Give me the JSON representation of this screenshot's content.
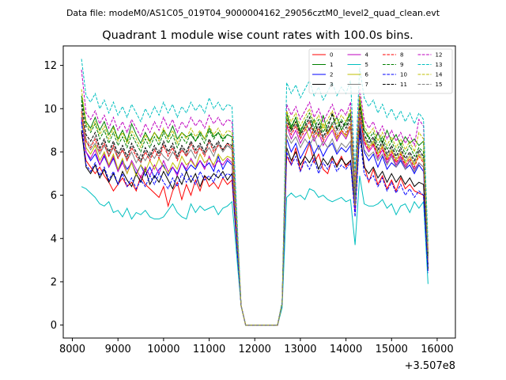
{
  "suptitle": "Data file: modeM0/AS1C05_019T04_9000004162_29056cztM0_level2_quad_clean.evt",
  "chart_data": {
    "type": "line",
    "title": "Quadrant 1 module wise count rates with 100.0s bins.",
    "xlabel": "",
    "ylabel": "",
    "x_offset_label": "+3.507e8",
    "xlim": [
      7800,
      16400
    ],
    "ylim": [
      -0.6,
      12.9
    ],
    "xticks": [
      8000,
      9000,
      10000,
      11000,
      12000,
      13000,
      14000,
      15000,
      16000
    ],
    "xtick_labels": [
      "8000",
      "9000",
      "10000",
      "11000",
      "12000",
      "13000",
      "14000",
      "15000",
      "16000"
    ],
    "yticks": [
      0,
      2,
      4,
      6,
      8,
      10,
      12
    ],
    "ytick_labels": [
      "0",
      "2",
      "4",
      "6",
      "8",
      "10",
      "12"
    ],
    "legend_position": "top-right",
    "x_start": 8200,
    "x_step": 100,
    "gap_start": 11600,
    "gap_end": 12600,
    "series": [
      {
        "name": "0",
        "color": "#ff0000",
        "dash": "solid",
        "pre": [
          8.9,
          7.6,
          7.3,
          7.0,
          7.3,
          6.9,
          6.6,
          6.2,
          6.5,
          6.8,
          6.4,
          6.6,
          6.2,
          6.9,
          6.5,
          6.3,
          6.1,
          5.9,
          6.4,
          5.5,
          6.2,
          6.6,
          5.8,
          6.5,
          6.0,
          6.7,
          6.2,
          6.9,
          6.4,
          6.6,
          6.3,
          6.8,
          6.5,
          6.7
        ],
        "post": [
          1.0,
          7.8,
          7.4,
          8.2,
          7.1,
          7.8,
          8.4,
          7.5,
          7.9,
          7.2,
          7.0,
          7.7,
          7.4,
          7.8,
          7.3,
          7.6,
          5.2,
          9.0,
          7.4,
          6.6,
          7.2,
          6.5,
          6.9,
          6.3,
          6.7,
          6.2,
          6.8,
          6.3,
          6.5,
          6.2,
          6.1,
          6.0,
          2.5
        ]
      },
      {
        "name": "1",
        "color": "#008000",
        "dash": "solid",
        "pre": [
          10.6,
          9.4,
          9.1,
          9.6,
          9.0,
          9.4,
          8.8,
          9.2,
          8.6,
          9.0,
          8.5,
          9.3,
          8.8,
          8.4,
          8.9,
          8.5,
          8.9,
          8.6,
          9.0,
          8.7,
          9.2,
          8.6,
          8.9,
          8.7,
          8.8,
          8.5,
          8.9,
          8.6,
          9.1,
          8.7,
          8.9,
          8.6,
          8.8,
          8.7
        ],
        "post": [
          1.0,
          9.8,
          9.1,
          9.6,
          8.9,
          9.4,
          9.0,
          9.5,
          8.8,
          9.7,
          8.9,
          9.3,
          9.6,
          9.0,
          9.4,
          9.8,
          5.6,
          10.5,
          9.0,
          8.7,
          8.3,
          8.9,
          8.4,
          9.0,
          8.5,
          8.8,
          8.3,
          8.7,
          8.4,
          8.6,
          8.3,
          8.5,
          3.2
        ]
      },
      {
        "name": "2",
        "color": "#0000ff",
        "dash": "solid",
        "pre": [
          9.6,
          8.0,
          7.6,
          7.9,
          7.4,
          7.8,
          7.3,
          7.7,
          7.1,
          7.6,
          7.2,
          7.5,
          7.0,
          7.4,
          6.9,
          7.3,
          6.8,
          7.2,
          7.4,
          6.9,
          7.3,
          7.0,
          7.5,
          7.1,
          7.4,
          7.2,
          7.6,
          7.3,
          7.5,
          7.1,
          7.8,
          7.2,
          7.6,
          7.4
        ],
        "post": [
          1.0,
          8.6,
          8.0,
          8.4,
          7.7,
          8.1,
          8.5,
          7.9,
          8.3,
          7.8,
          8.2,
          8.4,
          7.9,
          8.2,
          8.0,
          8.3,
          5.8,
          9.3,
          8.0,
          7.6,
          7.9,
          7.3,
          7.8,
          7.2,
          7.5,
          7.3,
          7.6,
          7.2,
          7.4,
          7.0,
          7.4,
          7.1,
          2.8
        ]
      },
      {
        "name": "3",
        "color": "#000000",
        "dash": "solid",
        "pre": [
          9.0,
          7.3,
          7.0,
          7.4,
          6.8,
          7.2,
          6.6,
          7.0,
          6.5,
          7.1,
          6.7,
          6.4,
          7.0,
          6.6,
          7.2,
          6.5,
          6.9,
          6.6,
          7.1,
          6.7,
          6.3,
          6.9,
          6.5,
          7.1,
          6.6,
          7.0,
          6.4,
          6.9,
          6.7,
          7.0,
          6.8,
          7.1,
          6.7,
          7.0
        ],
        "post": [
          1.0,
          8.2,
          7.6,
          8.0,
          7.4,
          7.8,
          7.5,
          7.9,
          7.2,
          7.7,
          7.4,
          7.8,
          7.3,
          7.7,
          7.4,
          7.6,
          5.4,
          9.1,
          7.3,
          7.0,
          7.3,
          6.8,
          7.1,
          6.6,
          7.0,
          6.6,
          6.9,
          6.5,
          6.8,
          6.4,
          6.6,
          6.5,
          2.6
        ]
      },
      {
        "name": "4",
        "color": "#bf00bf",
        "dash": "solid",
        "pre": [
          9.5,
          8.0,
          7.7,
          8.1,
          7.4,
          7.9,
          7.3,
          7.8,
          7.1,
          7.5,
          7.0,
          7.6,
          7.2,
          6.8,
          7.3,
          6.9,
          7.4,
          7.0,
          7.6,
          7.1,
          7.3,
          6.9,
          7.5,
          7.2,
          7.7,
          7.3,
          7.6,
          7.2,
          7.8,
          7.3,
          7.6,
          7.4,
          7.7,
          7.5
        ],
        "post": [
          1.0,
          9.2,
          8.6,
          9.0,
          8.4,
          8.8,
          9.1,
          8.5,
          8.9,
          8.3,
          8.7,
          9.0,
          8.5,
          8.9,
          8.6,
          9.1,
          5.3,
          9.8,
          8.4,
          8.0,
          8.3,
          7.7,
          8.1,
          7.5,
          7.9,
          7.4,
          7.8,
          7.3,
          7.6,
          7.2,
          7.5,
          7.3,
          3.0
        ]
      },
      {
        "name": "5",
        "color": "#00bfbf",
        "dash": "solid",
        "pre": [
          6.4,
          6.3,
          6.1,
          5.9,
          5.6,
          5.5,
          5.7,
          5.2,
          5.3,
          5.0,
          5.4,
          4.9,
          5.2,
          5.1,
          5.3,
          5.0,
          4.9,
          4.9,
          5.0,
          5.3,
          5.6,
          5.2,
          5.0,
          4.9,
          5.6,
          5.2,
          5.5,
          5.3,
          5.4,
          5.5,
          5.1,
          5.4,
          5.5,
          5.7
        ],
        "post": [
          0.8,
          5.9,
          6.1,
          5.9,
          6.0,
          5.8,
          6.3,
          6.2,
          5.9,
          6.0,
          5.8,
          5.7,
          5.8,
          5.9,
          5.7,
          5.8,
          3.7,
          6.9,
          5.6,
          5.5,
          5.5,
          5.6,
          5.8,
          5.4,
          5.6,
          5.1,
          5.5,
          5.6,
          5.2,
          5.7,
          5.4,
          5.7,
          1.9
        ]
      },
      {
        "name": "6",
        "color": "#bfbf00",
        "dash": "solid",
        "pre": [
          9.8,
          8.2,
          7.9,
          8.3,
          7.6,
          8.0,
          7.4,
          7.9,
          7.2,
          7.7,
          7.0,
          7.5,
          6.9,
          7.4,
          7.1,
          7.6,
          7.2,
          7.7,
          7.3,
          7.0,
          7.5,
          7.2,
          7.8,
          7.4,
          7.6,
          7.3,
          7.9,
          7.5,
          7.7,
          7.4,
          7.9,
          7.6,
          7.8,
          7.7
        ],
        "post": [
          1.0,
          9.6,
          9.0,
          9.4,
          8.8,
          9.2,
          8.6,
          9.1,
          8.7,
          9.3,
          8.8,
          9.2,
          8.6,
          9.0,
          8.7,
          9.2,
          5.5,
          10.2,
          8.6,
          8.2,
          8.5,
          7.9,
          8.3,
          7.7,
          8.1,
          7.6,
          8.0,
          7.5,
          7.8,
          7.4,
          7.9,
          7.6,
          3.1
        ]
      },
      {
        "name": "7",
        "color": "#808080",
        "dash": "solid",
        "pre": [
          9.3,
          8.5,
          8.1,
          8.4,
          7.9,
          8.3,
          7.8,
          8.2,
          7.7,
          8.1,
          7.6,
          8.0,
          7.5,
          7.9,
          7.6,
          8.0,
          7.7,
          8.1,
          7.8,
          7.6,
          8.0,
          7.7,
          8.2,
          7.8,
          8.1,
          7.7,
          8.3,
          7.9,
          8.2,
          7.8,
          8.4,
          8.0,
          8.3,
          8.1
        ],
        "post": [
          1.0,
          8.8,
          8.4,
          8.7,
          8.2,
          8.6,
          8.3,
          8.7,
          8.1,
          8.5,
          8.2,
          8.6,
          8.0,
          8.4,
          8.2,
          8.5,
          5.7,
          9.5,
          8.1,
          7.8,
          8.0,
          7.6,
          7.9,
          7.4,
          7.8,
          7.3,
          7.7,
          7.2,
          7.6,
          7.1,
          7.5,
          7.3,
          2.9
        ]
      },
      {
        "name": "8",
        "color": "#ff0000",
        "dash": "dashed",
        "pre": [
          9.9,
          8.5,
          8.2,
          8.6,
          8.0,
          8.4,
          7.8,
          8.3,
          7.7,
          8.1,
          7.6,
          8.2,
          7.8,
          7.5,
          8.0,
          7.6,
          8.1,
          7.7,
          8.3,
          7.8,
          8.2,
          7.6,
          8.1,
          7.8,
          8.4,
          7.9,
          8.2,
          7.8,
          8.5,
          8.0,
          8.3,
          8.1,
          8.4,
          8.2
        ],
        "post": [
          1.0,
          9.3,
          8.8,
          9.2,
          8.6,
          9.0,
          9.4,
          8.7,
          9.1,
          8.5,
          8.9,
          9.2,
          8.7,
          9.0,
          8.8,
          9.3,
          6.2,
          9.7,
          8.5,
          8.1,
          8.4,
          7.8,
          8.2,
          7.6,
          8.0,
          7.5,
          7.9,
          7.4,
          7.7,
          7.3,
          7.8,
          7.5,
          3.2
        ]
      },
      {
        "name": "9",
        "color": "#008000",
        "dash": "dashed",
        "pre": [
          10.4,
          9.2,
          8.9,
          9.3,
          8.6,
          9.0,
          8.4,
          8.9,
          8.3,
          8.7,
          8.2,
          8.8,
          8.4,
          8.0,
          8.6,
          8.2,
          8.7,
          8.3,
          8.9,
          8.4,
          8.8,
          8.2,
          8.7,
          8.4,
          8.9,
          8.5,
          8.8,
          8.4,
          9.0,
          8.6,
          8.9,
          8.5,
          8.8,
          8.7
        ],
        "post": [
          1.0,
          9.7,
          9.2,
          9.6,
          9.0,
          9.4,
          9.8,
          9.1,
          9.5,
          8.9,
          9.3,
          9.7,
          9.1,
          9.5,
          9.2,
          9.8,
          6.0,
          10.4,
          9.0,
          8.6,
          8.9,
          8.3,
          8.7,
          8.1,
          8.5,
          8.0,
          8.4,
          7.9,
          8.3,
          7.8,
          8.2,
          8.0,
          3.3
        ]
      },
      {
        "name": "10",
        "color": "#0000ff",
        "dash": "dashed",
        "pre": [
          9.4,
          7.4,
          7.1,
          7.5,
          6.9,
          7.3,
          6.7,
          7.1,
          6.5,
          7.0,
          6.4,
          6.8,
          6.3,
          6.7,
          6.4,
          6.9,
          6.5,
          7.0,
          6.6,
          6.3,
          6.8,
          6.4,
          7.0,
          6.6,
          6.9,
          6.5,
          7.1,
          6.7,
          6.9,
          6.6,
          7.2,
          6.8,
          7.0,
          6.9
        ],
        "post": [
          1.0,
          8.0,
          7.4,
          7.8,
          7.1,
          7.6,
          7.2,
          7.7,
          7.0,
          7.5,
          7.2,
          7.6,
          7.1,
          7.4,
          7.2,
          7.5,
          5.0,
          8.8,
          7.0,
          6.7,
          6.9,
          6.4,
          6.8,
          6.2,
          6.6,
          6.1,
          6.5,
          6.0,
          6.3,
          5.9,
          6.2,
          6.0,
          2.4
        ]
      },
      {
        "name": "11",
        "color": "#000000",
        "dash": "dashed",
        "pre": [
          10.2,
          8.8,
          8.5,
          8.9,
          8.2,
          8.6,
          8.0,
          8.5,
          7.9,
          8.3,
          7.8,
          8.4,
          8.0,
          7.6,
          8.2,
          7.8,
          8.3,
          7.9,
          8.5,
          8.0,
          8.4,
          7.8,
          8.3,
          8.0,
          8.5,
          8.1,
          8.4,
          8.0,
          8.6,
          8.2,
          8.5,
          8.1,
          8.4,
          8.3
        ],
        "post": [
          1.0,
          9.5,
          9.0,
          9.4,
          8.8,
          9.2,
          9.6,
          8.9,
          9.3,
          8.7,
          9.1,
          9.8,
          9.0,
          9.4,
          9.1,
          9.6,
          6.3,
          10.1,
          8.8,
          8.4,
          8.7,
          8.1,
          8.5,
          7.9,
          8.3,
          7.8,
          8.2,
          7.7,
          8.0,
          7.6,
          8.1,
          7.8,
          3.1
        ]
      },
      {
        "name": "12",
        "color": "#bf00bf",
        "dash": "dashed",
        "pre": [
          11.8,
          9.8,
          9.5,
          9.9,
          9.3,
          9.7,
          9.1,
          9.6,
          9.0,
          9.4,
          8.9,
          9.5,
          9.1,
          8.7,
          9.3,
          8.9,
          9.4,
          9.0,
          9.6,
          9.1,
          9.5,
          8.9,
          9.4,
          9.1,
          9.6,
          9.2,
          9.5,
          9.1,
          9.7,
          9.3,
          9.6,
          9.2,
          9.5,
          9.4
        ],
        "post": [
          1.0,
          10.2,
          9.7,
          10.1,
          9.5,
          9.9,
          10.3,
          9.6,
          10.0,
          9.4,
          9.8,
          10.2,
          9.6,
          10.0,
          9.7,
          10.3,
          6.6,
          10.9,
          9.5,
          9.1,
          9.4,
          8.8,
          9.2,
          8.6,
          9.0,
          8.5,
          8.9,
          8.4,
          8.8,
          8.3,
          9.5,
          9.2,
          3.5
        ]
      },
      {
        "name": "13",
        "color": "#00bfbf",
        "dash": "dashed",
        "pre": [
          12.3,
          10.6,
          10.3,
          10.7,
          10.0,
          10.4,
          9.8,
          10.3,
          9.7,
          10.1,
          9.6,
          10.2,
          9.8,
          9.4,
          10.0,
          9.6,
          10.1,
          9.7,
          10.3,
          9.8,
          10.2,
          9.6,
          10.1,
          9.8,
          10.3,
          9.9,
          10.2,
          9.8,
          10.5,
          10.0,
          10.3,
          9.9,
          10.2,
          10.1
        ],
        "post": [
          1.1,
          11.2,
          10.7,
          11.1,
          10.5,
          10.9,
          11.3,
          10.6,
          11.0,
          10.4,
          10.8,
          11.2,
          10.6,
          11.0,
          10.7,
          11.3,
          7.1,
          11.9,
          10.5,
          10.1,
          10.4,
          9.8,
          10.2,
          9.6,
          10.0,
          9.5,
          9.9,
          9.4,
          9.8,
          9.3,
          9.8,
          9.5,
          3.8
        ]
      },
      {
        "name": "14",
        "color": "#bfbf00",
        "dash": "dashed",
        "pre": [
          10.9,
          9.3,
          9.0,
          9.4,
          8.8,
          9.2,
          8.6,
          9.1,
          8.5,
          8.9,
          8.4,
          9.0,
          8.6,
          8.2,
          8.8,
          8.4,
          8.9,
          8.5,
          9.1,
          8.6,
          9.0,
          8.4,
          8.9,
          8.6,
          9.1,
          8.7,
          9.0,
          8.6,
          9.2,
          8.8,
          9.1,
          8.7,
          9.0,
          8.9
        ],
        "post": [
          1.0,
          9.9,
          9.4,
          9.8,
          9.2,
          9.6,
          10.0,
          9.3,
          9.7,
          9.1,
          9.5,
          9.9,
          9.3,
          9.7,
          9.4,
          10.0,
          6.4,
          10.6,
          9.2,
          8.8,
          9.1,
          8.5,
          8.9,
          8.3,
          8.7,
          8.2,
          8.6,
          8.1,
          8.5,
          8.0,
          8.9,
          8.6,
          3.4
        ]
      },
      {
        "name": "15",
        "color": "#808080",
        "dash": "dashed",
        "pre": [
          10.0,
          8.6,
          8.3,
          8.7,
          8.1,
          8.5,
          7.9,
          8.4,
          7.8,
          8.2,
          7.7,
          8.3,
          7.9,
          7.5,
          8.1,
          7.7,
          8.2,
          7.8,
          8.4,
          7.9,
          8.3,
          7.7,
          8.2,
          7.9,
          8.4,
          8.0,
          8.3,
          7.9,
          8.5,
          8.1,
          8.4,
          8.0,
          8.3,
          8.2
        ],
        "post": [
          1.0,
          9.4,
          8.9,
          9.3,
          8.7,
          9.1,
          9.5,
          8.8,
          9.2,
          8.6,
          9.0,
          9.4,
          8.8,
          9.2,
          8.9,
          9.5,
          6.1,
          9.9,
          8.7,
          8.3,
          8.6,
          8.0,
          8.4,
          7.8,
          8.2,
          7.7,
          8.1,
          7.6,
          7.9,
          7.5,
          8.0,
          7.7,
          3.1
        ]
      }
    ]
  }
}
